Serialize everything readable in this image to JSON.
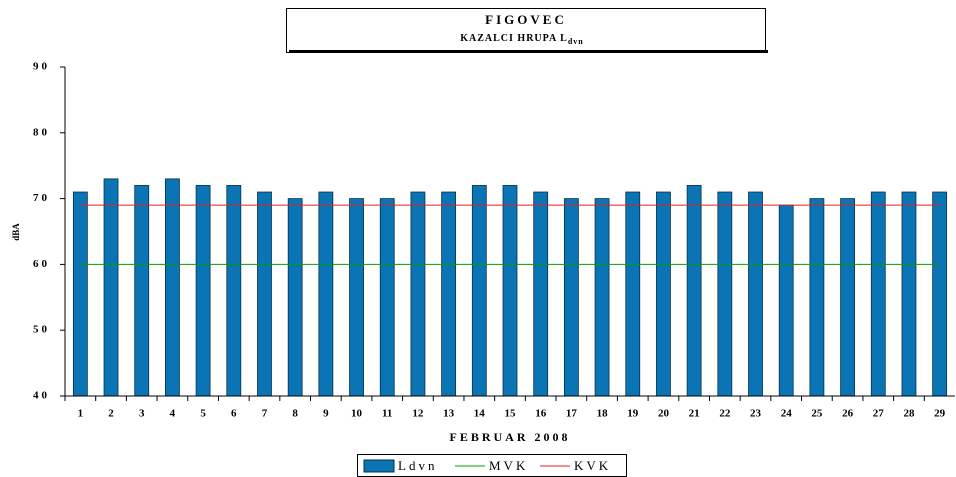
{
  "chart_data": {
    "type": "bar",
    "title": "FIGOVEC",
    "subtitle": {
      "text": "KAZALCI HRUPA L",
      "subscript": "dvn"
    },
    "xlabel": "FEBRUAR 2008",
    "ylabel": "dBA",
    "categories": [
      "1",
      "2",
      "3",
      "4",
      "5",
      "6",
      "7",
      "8",
      "9",
      "10",
      "11",
      "12",
      "13",
      "14",
      "15",
      "16",
      "17",
      "18",
      "19",
      "20",
      "21",
      "22",
      "23",
      "24",
      "25",
      "26",
      "27",
      "28",
      "29"
    ],
    "series": [
      {
        "name": "Ldvn",
        "type": "bar",
        "color": "#0a74b4",
        "values": [
          71,
          73,
          72,
          73,
          72,
          72,
          71,
          70,
          71,
          70,
          70,
          71,
          71,
          72,
          72,
          71,
          70,
          70,
          71,
          71,
          72,
          71,
          71,
          69,
          70,
          70,
          71,
          71,
          71
        ]
      },
      {
        "name": "MVK",
        "type": "line",
        "color": "#00a000",
        "values": [
          60,
          60,
          60,
          60,
          60,
          60,
          60,
          60,
          60,
          60,
          60,
          60,
          60,
          60,
          60,
          60,
          60,
          60,
          60,
          60,
          60,
          60,
          60,
          60,
          60,
          60,
          60,
          60,
          60
        ]
      },
      {
        "name": "KVK",
        "type": "line",
        "color": "#e02020",
        "values": [
          69,
          69,
          69,
          69,
          69,
          69,
          69,
          69,
          69,
          69,
          69,
          69,
          69,
          69,
          69,
          69,
          69,
          69,
          69,
          69,
          69,
          69,
          69,
          69,
          69,
          69,
          69,
          69,
          69
        ]
      }
    ],
    "ylim": [
      40,
      90
    ],
    "yticks": [
      40,
      50,
      60,
      70,
      80,
      90
    ],
    "grid": false,
    "legend": "bottom"
  }
}
